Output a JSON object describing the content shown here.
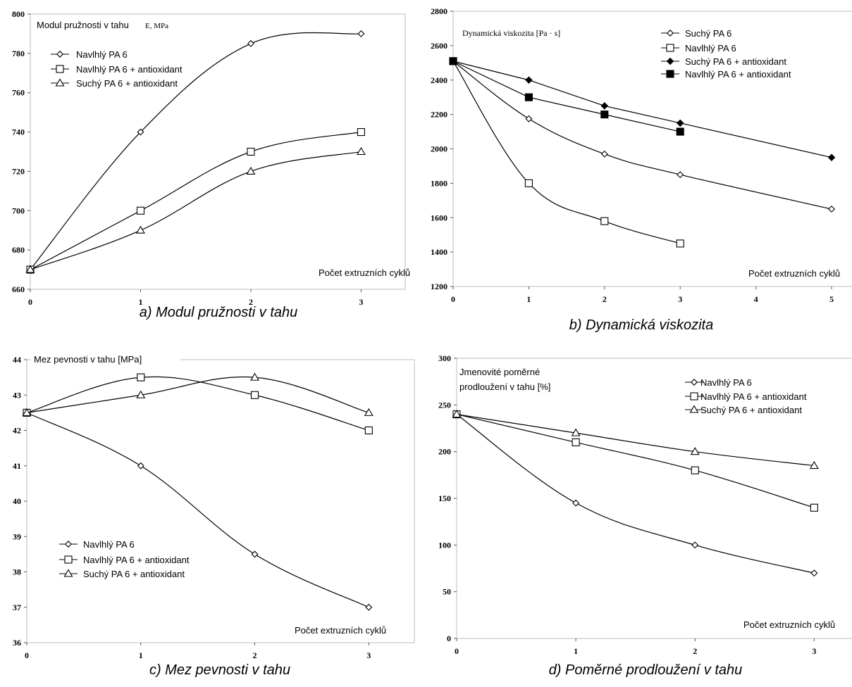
{
  "chart_data": [
    {
      "type": "line",
      "title": "Modul pružnosti v tahu",
      "title_unit": "E, MPa",
      "caption": "a) Modul pružnosti v tahu",
      "xlabel": "Počet extruzních cyklů",
      "ylabel": "",
      "xlim": [
        0,
        3.4
      ],
      "ylim": [
        660,
        800
      ],
      "x_ticks": [
        0,
        1,
        2,
        3
      ],
      "y_ticks": [
        660,
        680,
        700,
        720,
        740,
        760,
        780,
        800
      ],
      "grid": false,
      "legend_position": "top-left",
      "series": [
        {
          "name": "Navlhlý PA 6",
          "marker": "diamond-open",
          "x": [
            0,
            1,
            2,
            3
          ],
          "values": [
            670,
            740,
            785,
            790
          ]
        },
        {
          "name": "Navlhlý PA 6 + antioxidant",
          "marker": "square-open",
          "x": [
            0,
            1,
            2,
            3
          ],
          "values": [
            670,
            700,
            730,
            740
          ]
        },
        {
          "name": "Suchý PA 6 + antioxidant",
          "marker": "triangle-open",
          "x": [
            0,
            1,
            2,
            3
          ],
          "values": [
            670,
            690,
            720,
            730
          ]
        }
      ]
    },
    {
      "type": "line",
      "title": "Dynamická viskozita [Pa · s]",
      "caption": "b) Dynamická viskozita",
      "xlabel": "Počet extruzních cyklů",
      "ylabel": "",
      "xlim": [
        0,
        5.4
      ],
      "ylim": [
        1200,
        2800
      ],
      "x_ticks": [
        0,
        1,
        2,
        3,
        4,
        5
      ],
      "y_ticks": [
        1200,
        1400,
        1600,
        1800,
        2000,
        2200,
        2400,
        2600,
        2800
      ],
      "grid": false,
      "legend_position": "top-right",
      "series": [
        {
          "name": "Suchý PA 6",
          "marker": "diamond-open",
          "x": [
            0,
            1,
            2,
            3,
            5
          ],
          "values": [
            2510,
            2175,
            1970,
            1850,
            1650
          ]
        },
        {
          "name": "Navlhlý PA 6",
          "marker": "square-open",
          "x": [
            0,
            1,
            2,
            3
          ],
          "values": [
            2510,
            1800,
            1580,
            1450
          ]
        },
        {
          "name": "Suchý PA 6 + antioxidant",
          "marker": "diamond-filled",
          "x": [
            0,
            1,
            2,
            3,
            5
          ],
          "values": [
            2510,
            2400,
            2250,
            2150,
            1950
          ]
        },
        {
          "name": "Navlhlý PA 6 + antioxidant",
          "marker": "square-filled",
          "x": [
            0,
            1,
            2,
            3
          ],
          "values": [
            2510,
            2300,
            2200,
            2100
          ]
        }
      ]
    },
    {
      "type": "line",
      "title": "Mez pevnosti v tahu [MPa]",
      "caption": "c) Mez pevnosti v tahu",
      "xlabel": "Počet extruzních cyklů",
      "ylabel": "",
      "xlim": [
        0,
        3.4
      ],
      "ylim": [
        36,
        44
      ],
      "x_ticks": [
        0,
        1,
        2,
        3
      ],
      "y_ticks": [
        36,
        37,
        38,
        39,
        40,
        41,
        42,
        43,
        44
      ],
      "grid": false,
      "legend_position": "bottom-left",
      "series": [
        {
          "name": "Navlhlý PA 6",
          "marker": "diamond-open",
          "x": [
            0,
            1,
            2,
            3
          ],
          "values": [
            42.5,
            41,
            38.5,
            37
          ]
        },
        {
          "name": "Navlhlý PA 6 + antioxidant",
          "marker": "square-open",
          "x": [
            0,
            1,
            2,
            3
          ],
          "values": [
            42.5,
            43.5,
            43,
            42
          ]
        },
        {
          "name": "Suchý PA 6 + antioxidant",
          "marker": "triangle-open",
          "x": [
            0,
            1,
            2,
            3
          ],
          "values": [
            42.5,
            43,
            43.5,
            42.5
          ]
        }
      ]
    },
    {
      "type": "line",
      "title": "Jmenovité poměrné",
      "title_line2": "prodloužení v tahu [%]",
      "caption": "d) Poměrné prodloužení v tahu",
      "xlabel": "Počet extruzních cyklů",
      "ylabel": "",
      "xlim": [
        0,
        3.4
      ],
      "ylim": [
        0,
        300
      ],
      "x_ticks": [
        0,
        1,
        2,
        3
      ],
      "y_ticks": [
        0,
        50,
        100,
        150,
        200,
        250,
        300
      ],
      "grid": false,
      "legend_position": "top-right",
      "series": [
        {
          "name": "Navlhlý PA 6",
          "marker": "diamond-open",
          "x": [
            0,
            1,
            2,
            3
          ],
          "values": [
            240,
            145,
            100,
            70
          ]
        },
        {
          "name": "Navlhlý PA 6 + antioxidant",
          "marker": "square-open",
          "x": [
            0,
            1,
            2,
            3
          ],
          "values": [
            240,
            210,
            180,
            140
          ]
        },
        {
          "name": "Suchý PA 6 + antioxidant",
          "marker": "triangle-open",
          "x": [
            0,
            1,
            2,
            3
          ],
          "values": [
            240,
            220,
            200,
            185
          ]
        }
      ]
    }
  ]
}
